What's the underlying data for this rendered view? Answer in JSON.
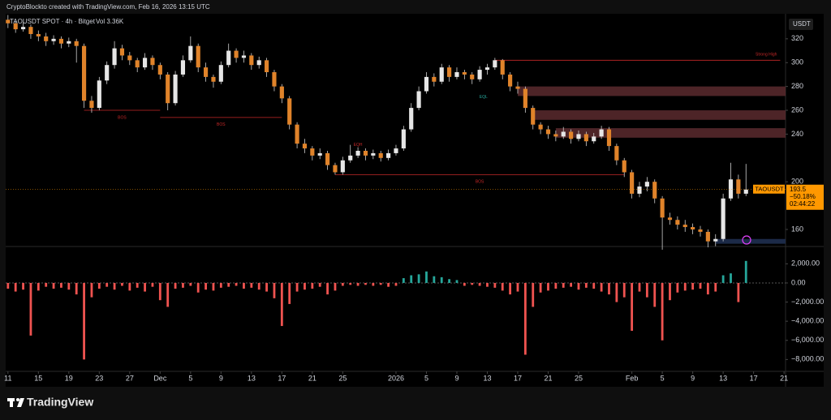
{
  "header": {
    "credit": "CryptoBlockto created with TradingView.com, Feb 16, 2026 13:15 UTC"
  },
  "footer": {
    "brand": "TradingView"
  },
  "chart_data": [
    {
      "type": "candlestick",
      "title": "TAOUSDT SPOT · 4h · Bitget",
      "subtitle": "Vol 3.36K",
      "currency": "USDT",
      "up_color": "#e6e6e6",
      "down_color": "#e0832a",
      "ylim": [
        145.7,
        341
      ],
      "yticks": [
        160,
        200,
        240,
        260,
        280,
        300,
        320
      ],
      "xlim": [
        -0.3,
        102.2
      ],
      "xticks": [
        {
          "value": 0,
          "label": "11"
        },
        {
          "value": 4,
          "label": "15"
        },
        {
          "value": 8,
          "label": "19"
        },
        {
          "value": 12,
          "label": "23"
        },
        {
          "value": 16,
          "label": "27"
        },
        {
          "value": 20,
          "label": "Dec"
        },
        {
          "value": 24,
          "label": "5"
        },
        {
          "value": 28,
          "label": "9"
        },
        {
          "value": 32,
          "label": "13"
        },
        {
          "value": 36,
          "label": "17"
        },
        {
          "value": 40,
          "label": "21"
        },
        {
          "value": 44,
          "label": "25"
        },
        {
          "value": 51,
          "label": "2026"
        },
        {
          "value": 55,
          "label": "5"
        },
        {
          "value": 59,
          "label": "9"
        },
        {
          "value": 63,
          "label": "13"
        },
        {
          "value": 67,
          "label": "17"
        },
        {
          "value": 71,
          "label": "21"
        },
        {
          "value": 75,
          "label": "25"
        },
        {
          "value": 82,
          "label": "Feb"
        },
        {
          "value": 86,
          "label": "5"
        },
        {
          "value": 90,
          "label": "9"
        },
        {
          "value": 94,
          "label": "13"
        },
        {
          "value": 98,
          "label": "17"
        },
        {
          "value": 102,
          "label": "21"
        }
      ],
      "candles": [
        [
          336,
          340,
          329,
          333
        ],
        [
          333,
          335,
          325,
          328
        ],
        [
          328,
          334,
          326,
          330
        ],
        [
          330,
          332,
          320,
          324
        ],
        [
          324,
          327,
          318,
          322
        ],
        [
          322,
          325,
          314,
          318
        ],
        [
          318,
          323,
          315,
          320
        ],
        [
          320,
          322,
          312,
          316
        ],
        [
          316,
          321,
          313,
          318
        ],
        [
          318,
          320,
          300,
          314
        ],
        [
          314,
          316,
          262,
          268
        ],
        [
          268,
          272,
          258,
          262
        ],
        [
          262,
          288,
          260,
          285
        ],
        [
          285,
          301,
          282,
          298
        ],
        [
          298,
          318,
          295,
          312
        ],
        [
          312,
          315,
          302,
          306
        ],
        [
          306,
          309,
          298,
          302
        ],
        [
          302,
          304,
          292,
          296
        ],
        [
          296,
          308,
          294,
          304
        ],
        [
          304,
          306,
          294,
          298
        ],
        [
          298,
          300,
          286,
          290
        ],
        [
          290,
          292,
          260,
          266
        ],
        [
          266,
          293,
          264,
          290
        ],
        [
          290,
          306,
          288,
          302
        ],
        [
          302,
          322,
          300,
          314
        ],
        [
          314,
          316,
          292,
          296
        ],
        [
          296,
          300,
          284,
          288
        ],
        [
          288,
          290,
          279,
          284
        ],
        [
          284,
          301,
          282,
          298
        ],
        [
          298,
          316,
          296,
          310
        ],
        [
          310,
          312,
          300,
          304
        ],
        [
          304,
          310,
          300,
          306
        ],
        [
          306,
          308,
          294,
          298
        ],
        [
          298,
          305,
          295,
          302
        ],
        [
          302,
          304,
          288,
          292
        ],
        [
          292,
          294,
          276,
          280
        ],
        [
          280,
          282,
          266,
          270
        ],
        [
          270,
          272,
          244,
          248
        ],
        [
          248,
          250,
          228,
          232
        ],
        [
          232,
          236,
          224,
          228
        ],
        [
          228,
          230,
          218,
          222
        ],
        [
          222,
          228,
          219,
          224
        ],
        [
          224,
          226,
          210,
          214
        ],
        [
          214,
          216,
          206,
          208
        ],
        [
          208,
          221,
          206,
          218
        ],
        [
          218,
          231,
          216,
          222
        ],
        [
          222,
          229,
          220,
          226
        ],
        [
          226,
          228,
          218,
          222
        ],
        [
          222,
          227,
          219,
          224
        ],
        [
          224,
          226,
          217,
          220
        ],
        [
          220,
          227,
          218,
          224
        ],
        [
          224,
          231,
          222,
          228
        ],
        [
          228,
          247,
          226,
          244
        ],
        [
          244,
          266,
          242,
          262
        ],
        [
          262,
          280,
          260,
          276
        ],
        [
          276,
          292,
          274,
          288
        ],
        [
          288,
          291,
          280,
          284
        ],
        [
          284,
          299,
          282,
          296
        ],
        [
          296,
          298,
          284,
          288
        ],
        [
          288,
          296,
          286,
          292
        ],
        [
          292,
          294,
          286,
          290
        ],
        [
          290,
          292,
          282,
          286
        ],
        [
          286,
          297,
          284,
          294
        ],
        [
          294,
          299,
          290,
          296
        ],
        [
          296,
          304,
          294,
          302
        ],
        [
          302,
          303,
          286,
          290
        ],
        [
          290,
          292,
          276,
          280
        ],
        [
          280,
          284,
          274,
          278
        ],
        [
          278,
          280,
          258,
          262
        ],
        [
          262,
          264,
          244,
          248
        ],
        [
          248,
          250,
          240,
          244
        ],
        [
          244,
          247,
          236,
          240
        ],
        [
          240,
          243,
          234,
          238
        ],
        [
          238,
          246,
          236,
          242
        ],
        [
          242,
          244,
          232,
          236
        ],
        [
          236,
          243,
          234,
          240
        ],
        [
          240,
          242,
          230,
          234
        ],
        [
          234,
          241,
          232,
          238
        ],
        [
          238,
          247,
          236,
          244
        ],
        [
          244,
          246,
          226,
          230
        ],
        [
          230,
          232,
          214,
          218
        ],
        [
          218,
          220,
          204,
          208
        ],
        [
          208,
          210,
          186,
          190
        ],
        [
          190,
          200,
          187,
          196
        ],
        [
          196,
          204,
          192,
          200
        ],
        [
          200,
          202,
          182,
          186
        ],
        [
          186,
          188,
          143,
          170
        ],
        [
          170,
          174,
          164,
          168
        ],
        [
          168,
          171,
          160,
          164
        ],
        [
          164,
          168,
          158,
          162
        ],
        [
          162,
          165,
          156,
          160
        ],
        [
          160,
          163,
          154,
          158
        ],
        [
          158,
          160,
          145,
          150
        ],
        [
          150,
          156,
          146,
          152
        ],
        [
          152,
          190,
          150,
          186
        ],
        [
          186,
          216,
          184,
          202
        ],
        [
          202,
          206,
          186,
          190
        ],
        [
          190,
          215,
          188,
          193.5
        ]
      ],
      "level_color": "#c62828",
      "levels": [
        {
          "label": "BOS",
          "value": 260,
          "start": 10,
          "end": 20
        },
        {
          "label": "BOS",
          "value": 254,
          "start": 20,
          "end": 36
        },
        {
          "label": "BOS",
          "value": 206,
          "start": 43,
          "end": 81
        },
        {
          "label": "Strong High",
          "value": 302,
          "start": 64,
          "end": 101.5
        }
      ],
      "points": [
        {
          "label": "EQH",
          "x": 46,
          "y": 231,
          "color": "#c62828"
        },
        {
          "label": "EQL",
          "x": 62.5,
          "y": 271,
          "color": "#26a69a"
        }
      ],
      "zone_color": "#5a2a2e",
      "zones": [
        {
          "from": 272,
          "to": 280,
          "start": 67
        },
        {
          "from": 252,
          "to": 260,
          "start": 69
        },
        {
          "from": 237,
          "to": 245,
          "start": 72
        }
      ],
      "demand_zone": {
        "from": 148,
        "to": 152,
        "start": 93,
        "color": "#1c2a48"
      },
      "last_price": {
        "symbol": "TAOUSDT",
        "value": 193.5,
        "change": "−50.18%",
        "countdown": "02:44:22",
        "color": "#ff9800"
      }
    },
    {
      "type": "bar",
      "positive_color": "#26a69a",
      "negative_color": "#ef5350",
      "ylim": [
        -9240,
        3810
      ],
      "yticks": [
        {
          "value": 2000,
          "label": "2,000.00"
        },
        {
          "value": 0,
          "label": "0.00"
        },
        {
          "value": -2000,
          "label": "−2,000.00"
        },
        {
          "value": -4000,
          "label": "−4,000.00"
        },
        {
          "value": -6000,
          "label": "−6,000.00"
        },
        {
          "value": -8000,
          "label": "−8,000.00"
        }
      ],
      "values": [
        -600,
        -900,
        -700,
        -5500,
        -800,
        -400,
        -600,
        -500,
        -700,
        -1200,
        -8000,
        -1500,
        -600,
        -400,
        -700,
        -300,
        -800,
        -500,
        -900,
        -400,
        -1800,
        -2500,
        -600,
        -500,
        -300,
        -1000,
        -700,
        -800,
        -500,
        -400,
        -300,
        -600,
        -500,
        -700,
        -900,
        -1600,
        -4500,
        -2200,
        -900,
        -700,
        -600,
        -400,
        -1200,
        -800,
        -300,
        -200,
        -300,
        -200,
        -300,
        -200,
        -400,
        -300,
        500,
        800,
        900,
        1200,
        700,
        600,
        400,
        300,
        -300,
        -200,
        -300,
        -400,
        -500,
        -800,
        -1200,
        -900,
        -7500,
        -2500,
        -1000,
        -800,
        -600,
        -500,
        -400,
        -700,
        -500,
        -600,
        -900,
        -1200,
        -2000,
        -1500,
        -5000,
        -900,
        -1500,
        -2500,
        -6000,
        -1800,
        -1000,
        -800,
        -700,
        -600,
        -1200,
        -900,
        800,
        1000,
        -2000,
        2300
      ]
    }
  ]
}
